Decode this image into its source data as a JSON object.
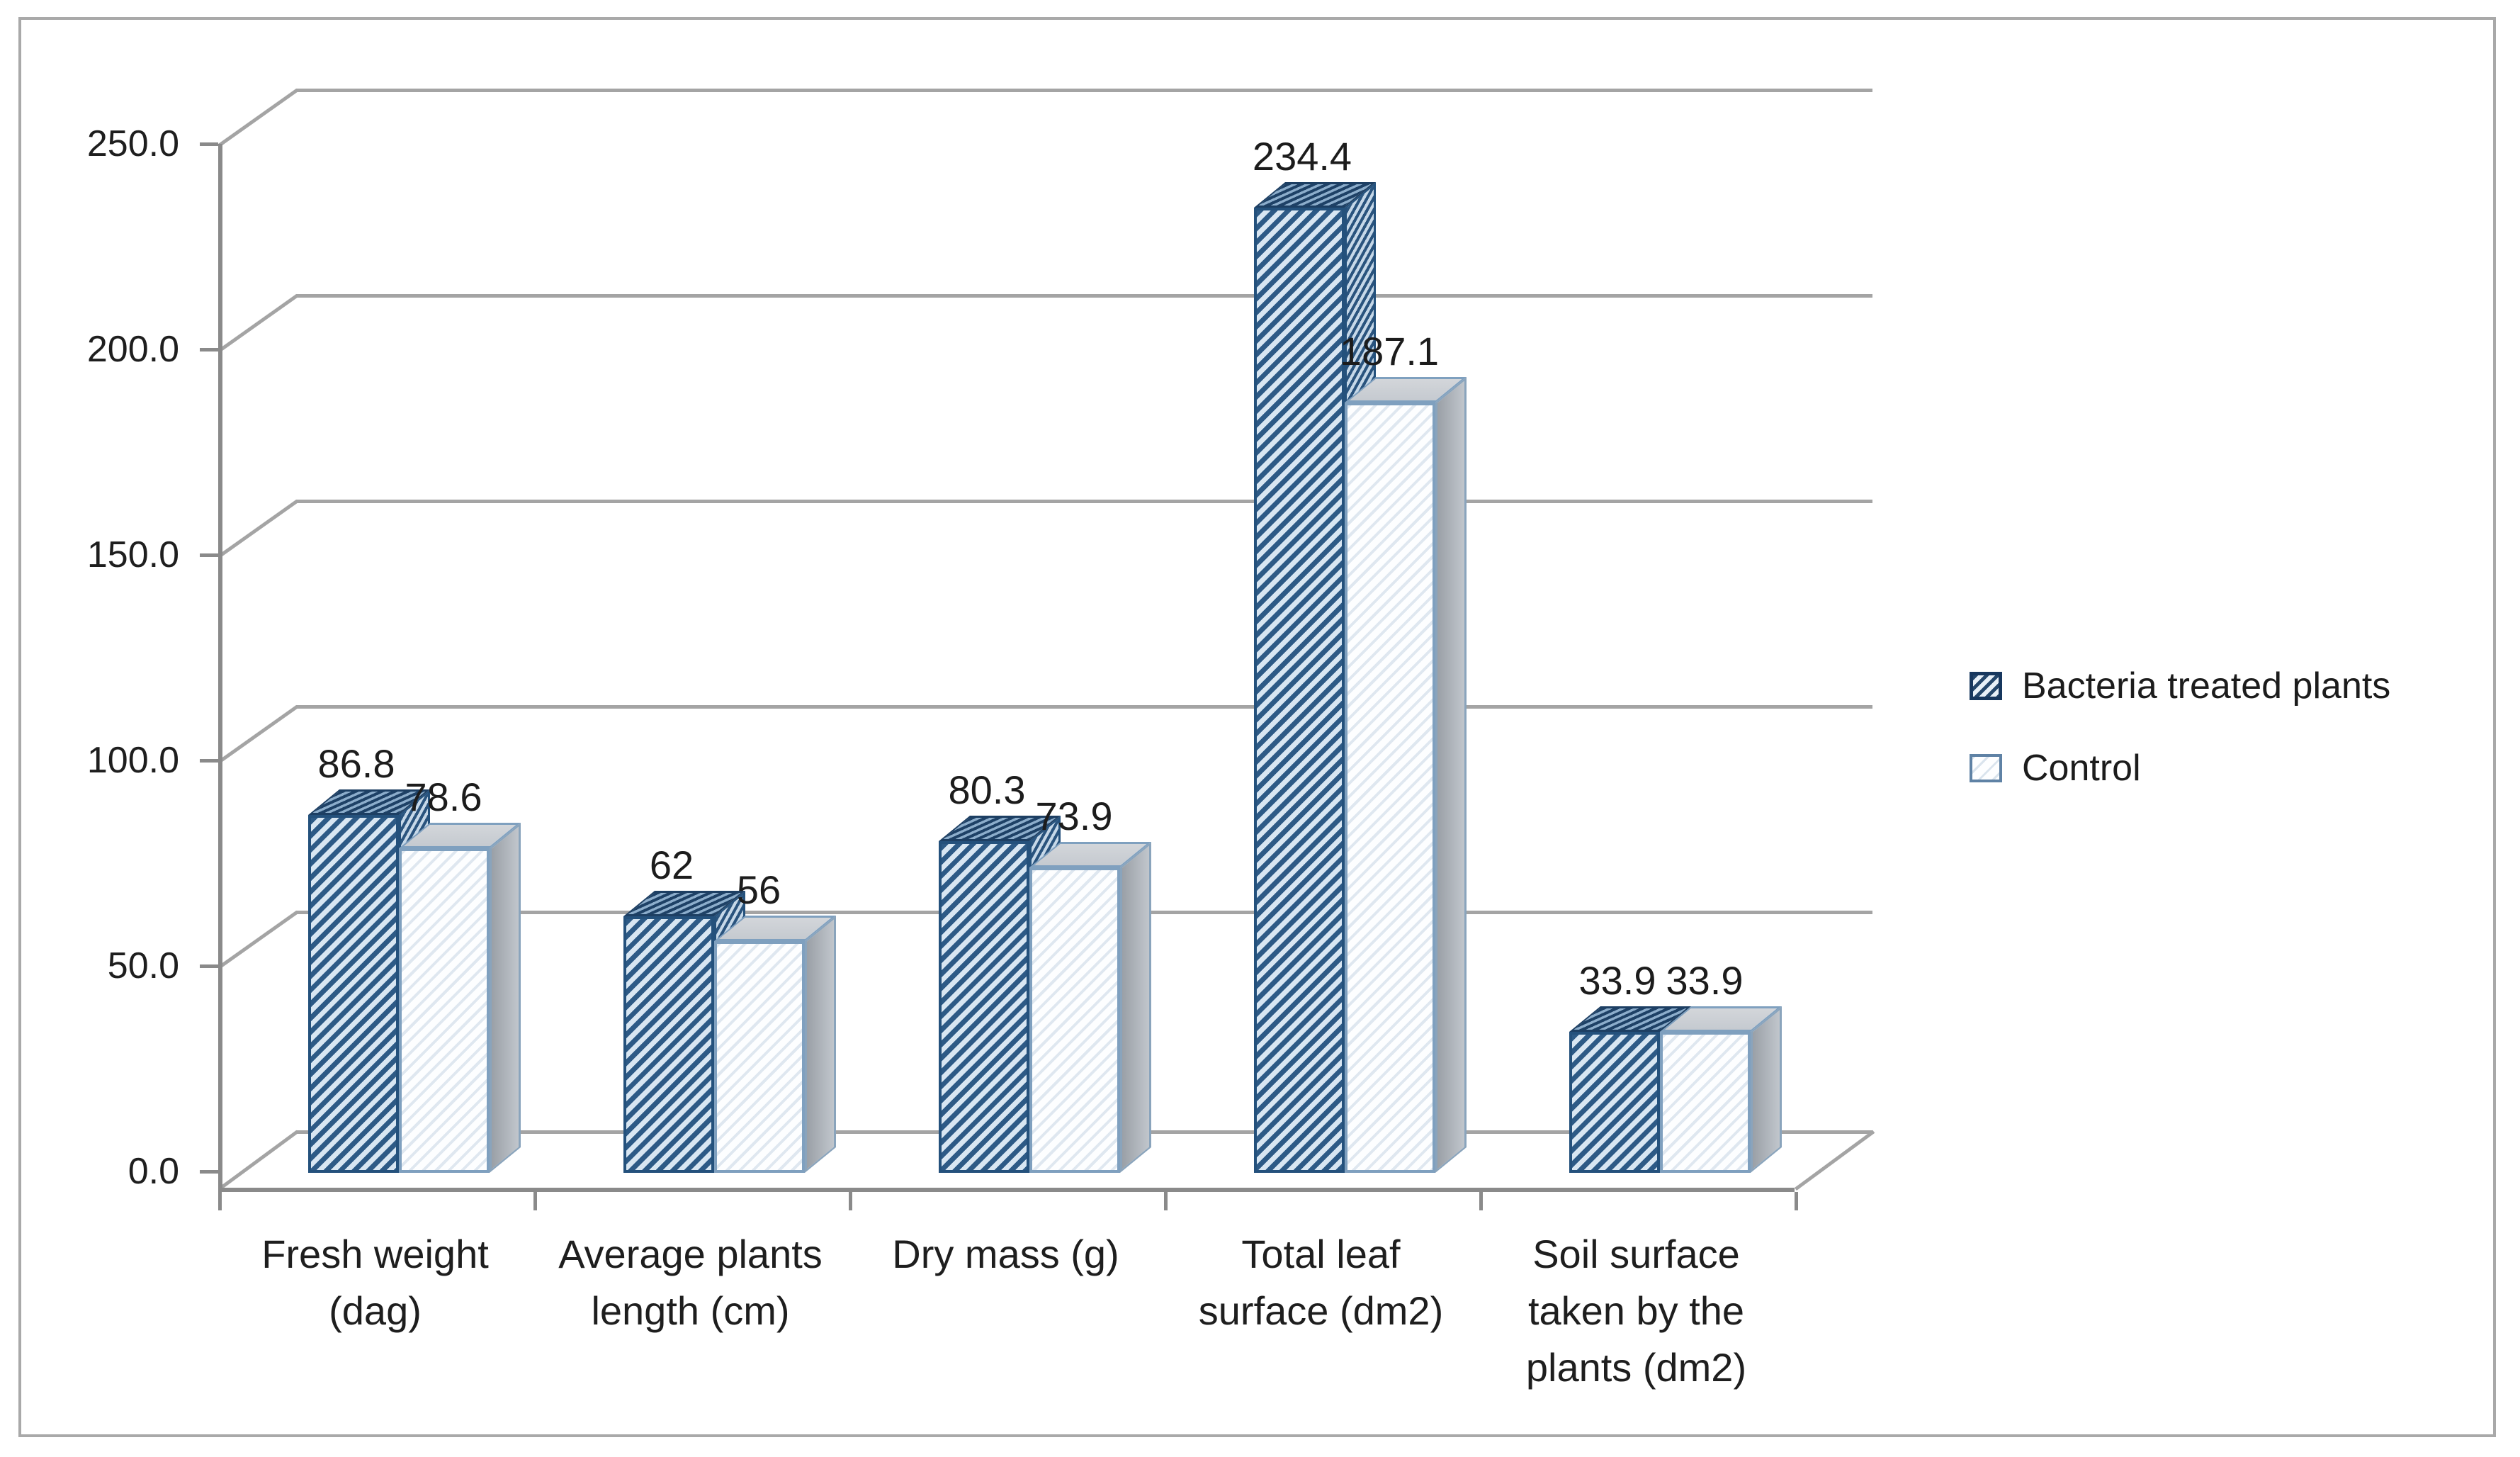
{
  "chart_data": {
    "type": "bar",
    "projection": "3d-clustered-column",
    "title": "",
    "xlabel": "",
    "ylabel": "",
    "categories": [
      "Fresh weight (dag)",
      "Average plants length (cm)",
      "Dry mass (g)",
      "Total leaf surface (dm2)",
      "Soil surface taken by the plants (dm2)"
    ],
    "category_label_lines": [
      [
        "Fresh weight",
        "(dag)"
      ],
      [
        "Average plants",
        "length (cm)"
      ],
      [
        "Dry mass (g)"
      ],
      [
        "Total leaf",
        "surface (dm2)"
      ],
      [
        "Soil surface",
        "taken by the",
        "plants (dm2)"
      ]
    ],
    "series": [
      {
        "name": "Bacteria treated plants",
        "values": [
          86.8,
          62,
          80.3,
          234.4,
          33.9
        ],
        "labels": [
          "86.8",
          "62",
          "80.3",
          "234.4",
          "33.9"
        ],
        "pattern": "dark-upward-diagonal-hatch"
      },
      {
        "name": "Control",
        "values": [
          78.6,
          56,
          73.9,
          187.1,
          33.9
        ],
        "labels": [
          "78.6",
          "56",
          "73.9",
          "187.1",
          "33.9"
        ],
        "pattern": "light-upward-diagonal-hatch"
      }
    ],
    "ylim": [
      0,
      250
    ],
    "ytick_step": 50,
    "ytick_labels": [
      "0.0",
      "50.0",
      "100.0",
      "150.0",
      "200.0",
      "250.0"
    ],
    "grid": true,
    "legend_position": "right-middle"
  },
  "colors": {
    "series1_hatch_dark": "#2d5a86",
    "series1_hatch_light": "#d8e6f2",
    "series1_border": "#24517c",
    "series2_fill": "#fdfeff",
    "series2_border": "#7fa0bf",
    "series2_top_gray": "#cdd0d5",
    "series2_side_gray": "#a6abb1",
    "gridline": "#a4a4a4",
    "axis": "#8a8a8a",
    "frame_border": "#a9a9a9",
    "text": "#1e1e1e",
    "background": "#ffffff"
  }
}
